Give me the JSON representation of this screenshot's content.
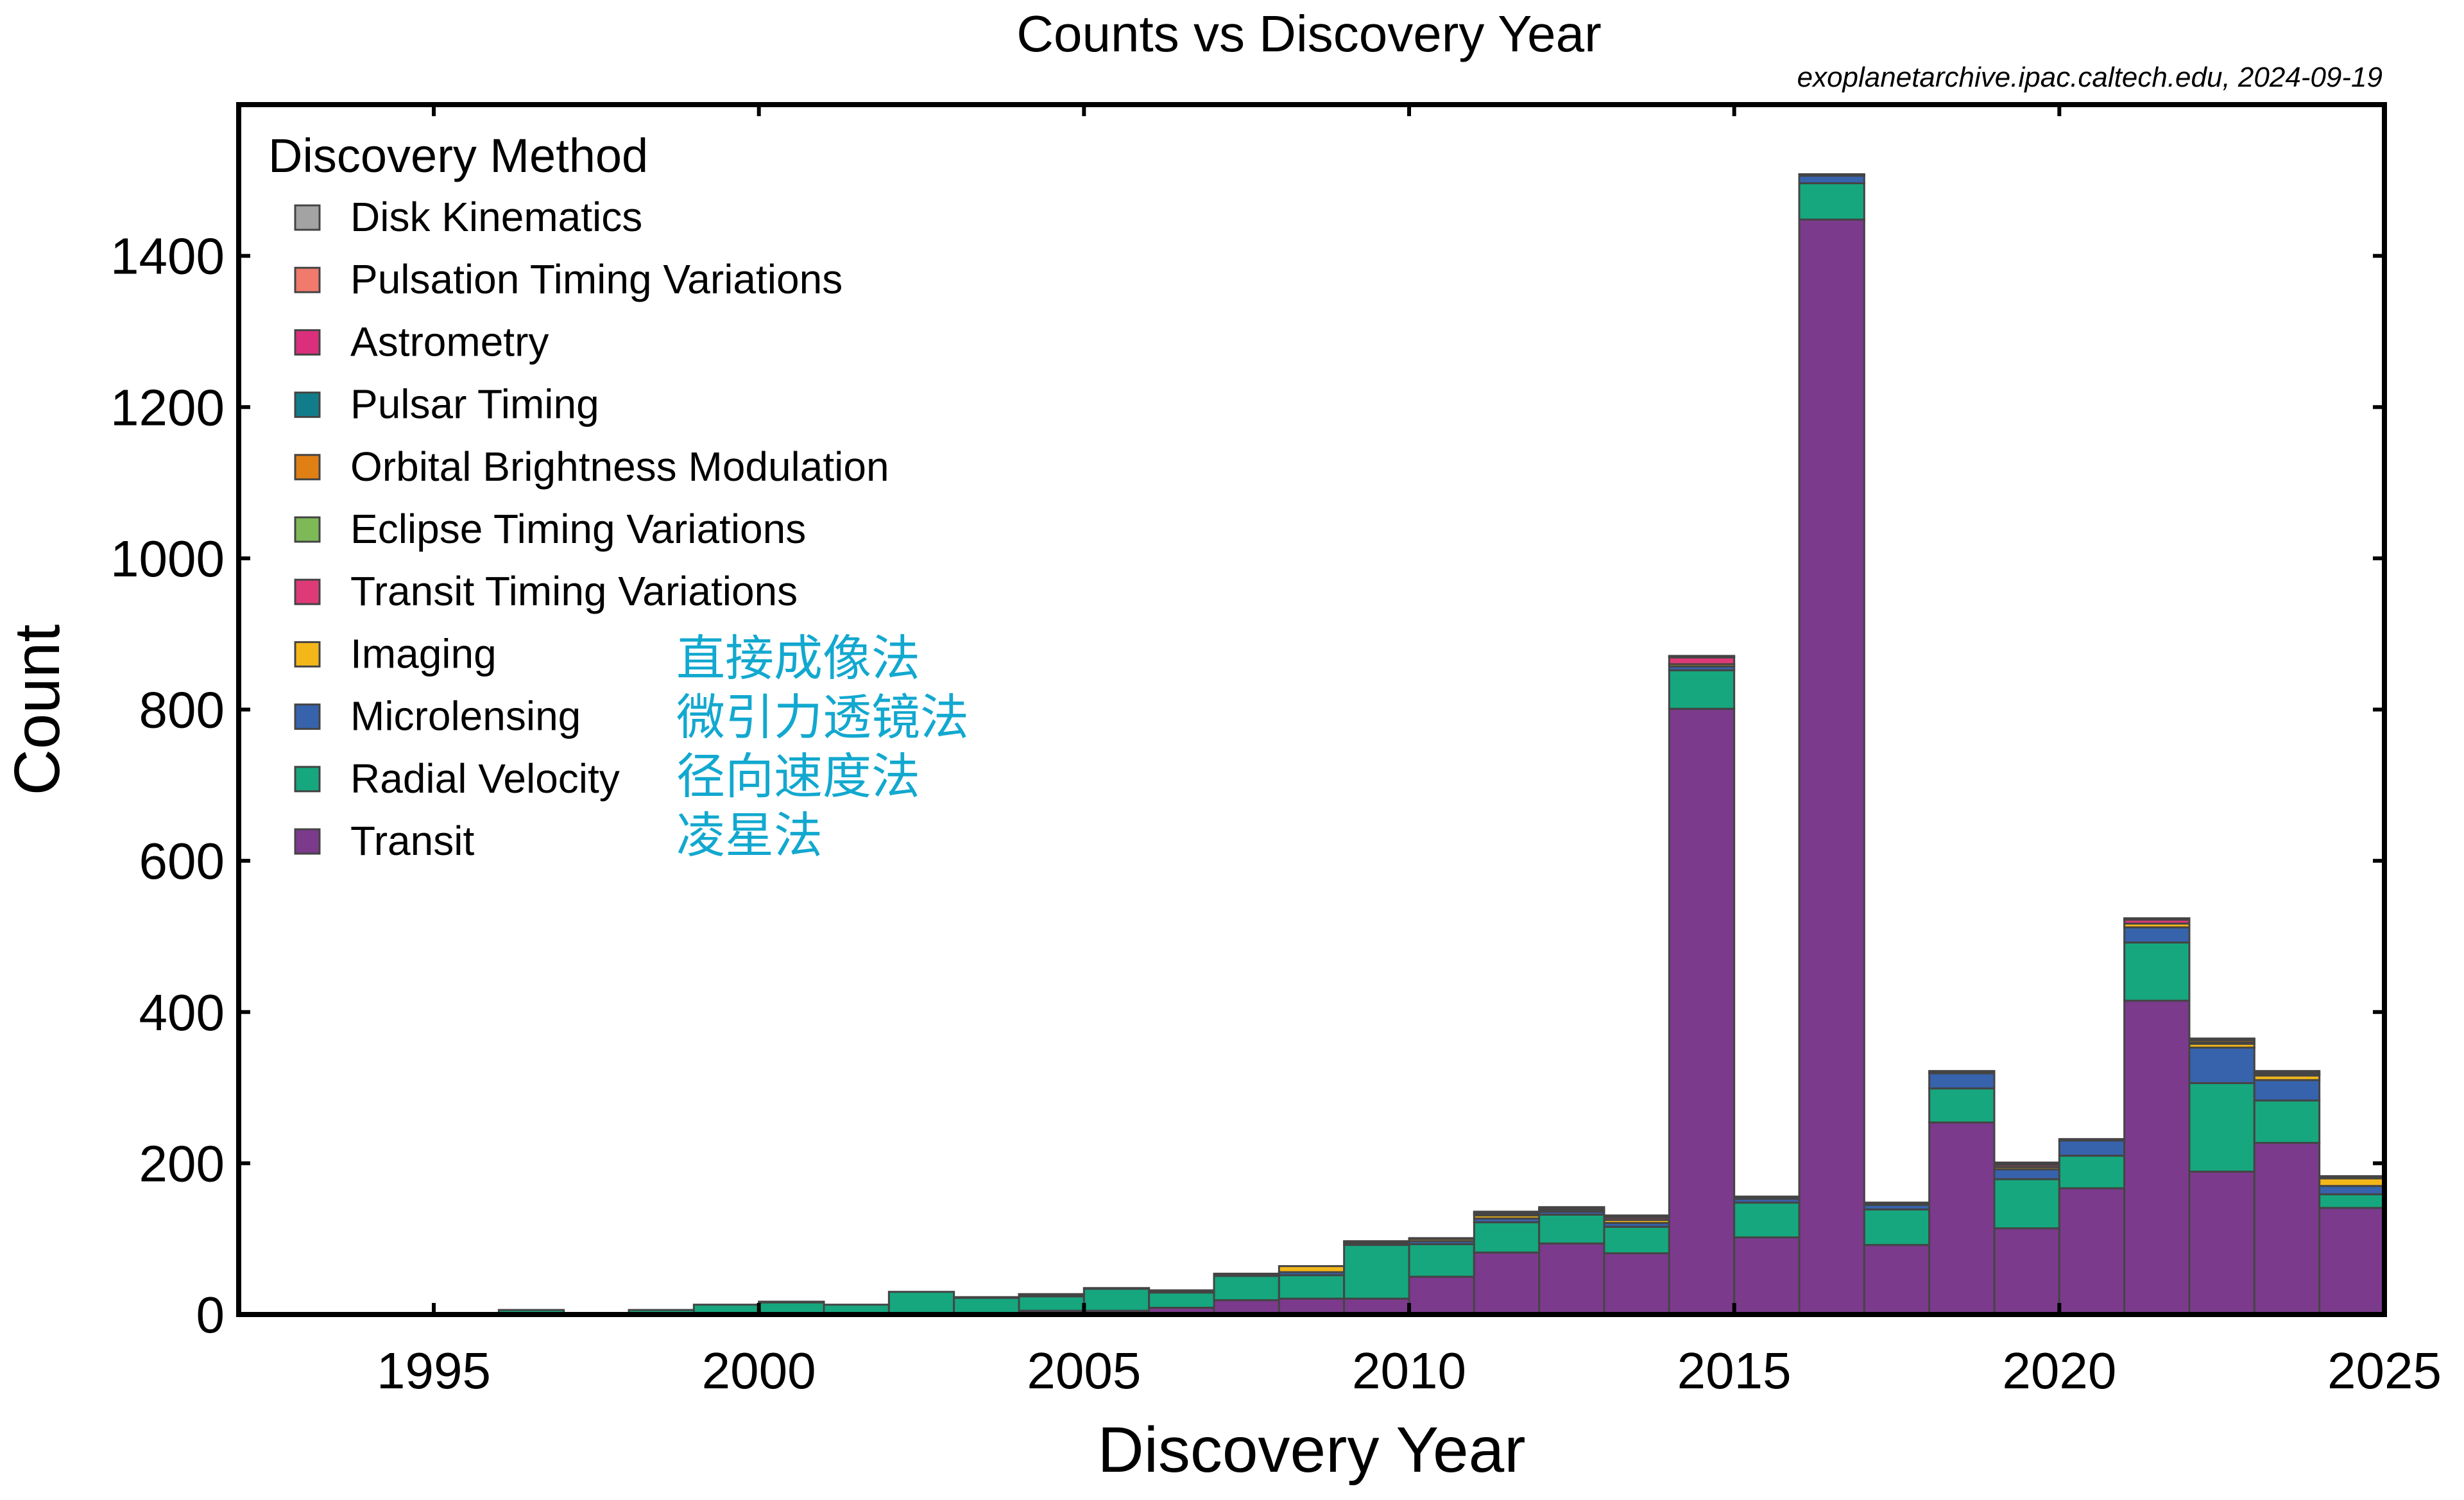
{
  "chart_data": {
    "type": "bar",
    "stacked": true,
    "title": "Counts vs Discovery Year",
    "source_note": "exoplanetarchive.ipac.caltech.edu, 2024-09-19",
    "xlabel": "Discovery Year",
    "ylabel": "Count",
    "xlim": [
      1992,
      2025
    ],
    "ylim": [
      0,
      1600
    ],
    "xticks": [
      1995,
      2000,
      2005,
      2010,
      2015,
      2020,
      2025
    ],
    "yticks": [
      0,
      200,
      400,
      600,
      800,
      1000,
      1200,
      1400
    ],
    "grid": false,
    "legend_title": "Discovery Method",
    "legend_position": "top-left",
    "x": [
      1992,
      1993,
      1994,
      1995,
      1996,
      1997,
      1998,
      1999,
      2000,
      2001,
      2002,
      2003,
      2004,
      2005,
      2006,
      2007,
      2008,
      2009,
      2010,
      2011,
      2012,
      2013,
      2014,
      2015,
      2016,
      2017,
      2018,
      2019,
      2020,
      2021,
      2022,
      2023,
      2024
    ],
    "series": [
      {
        "name": "Transit",
        "color": "#7b3a8c",
        "values": [
          0,
          0,
          0,
          0,
          0,
          0,
          0,
          0,
          0,
          0,
          1,
          1,
          5,
          5,
          9,
          19,
          21,
          21,
          50,
          82,
          94,
          81,
          801,
          102,
          1448,
          92,
          254,
          114,
          167,
          415,
          189,
          227,
          141
        ]
      },
      {
        "name": "Radial Velocity",
        "color": "#16a77f",
        "values": [
          0,
          0,
          0,
          1,
          6,
          1,
          6,
          13,
          16,
          13,
          29,
          21,
          19,
          29,
          20,
          32,
          31,
          71,
          43,
          40,
          38,
          35,
          51,
          46,
          48,
          47,
          45,
          65,
          43,
          77,
          117,
          56,
          18
        ]
      },
      {
        "name": "Microlensing",
        "color": "#3763ad",
        "values": [
          0,
          0,
          0,
          0,
          0,
          0,
          0,
          0,
          0,
          0,
          0,
          0,
          2,
          1,
          1,
          2,
          4,
          2,
          4,
          5,
          4,
          5,
          5,
          5,
          10,
          6,
          20,
          13,
          20,
          20,
          47,
          27,
          11
        ]
      },
      {
        "name": "Imaging",
        "color": "#f3b71a",
        "values": [
          0,
          0,
          0,
          0,
          0,
          0,
          0,
          0,
          0,
          0,
          0,
          0,
          1,
          0,
          2,
          1,
          8,
          2,
          3,
          4,
          2,
          4,
          3,
          2,
          1,
          2,
          1,
          3,
          0,
          5,
          5,
          6,
          10
        ]
      },
      {
        "name": "Transit Timing Variations",
        "color": "#df3a78",
        "values": [
          0,
          0,
          0,
          0,
          0,
          0,
          0,
          0,
          0,
          0,
          0,
          0,
          0,
          0,
          0,
          0,
          0,
          0,
          0,
          2,
          1,
          3,
          9,
          1,
          0,
          1,
          1,
          3,
          2,
          5,
          2,
          2,
          2
        ]
      },
      {
        "name": "Eclipse Timing Variations",
        "color": "#7dba57",
        "values": [
          0,
          0,
          0,
          0,
          0,
          0,
          0,
          0,
          0,
          0,
          0,
          0,
          0,
          0,
          0,
          0,
          0,
          1,
          1,
          1,
          1,
          1,
          0,
          0,
          1,
          0,
          1,
          2,
          0,
          1,
          0,
          1,
          0
        ]
      },
      {
        "name": "Orbital Brightness Modulation",
        "color": "#e08014",
        "values": [
          0,
          0,
          0,
          0,
          0,
          0,
          0,
          0,
          0,
          0,
          0,
          0,
          0,
          0,
          0,
          0,
          0,
          0,
          0,
          1,
          2,
          1,
          0,
          0,
          0,
          0,
          0,
          0,
          0,
          1,
          3,
          2,
          0
        ]
      },
      {
        "name": "Pulsar Timing",
        "color": "#127d8a",
        "values": [
          2,
          1,
          0,
          0,
          0,
          0,
          0,
          0,
          1,
          0,
          0,
          1,
          0,
          0,
          0,
          0,
          0,
          0,
          0,
          1,
          0,
          0,
          1,
          0,
          0,
          0,
          0,
          0,
          0,
          0,
          0,
          0,
          0
        ]
      },
      {
        "name": "Astrometry",
        "color": "#db2f7d",
        "values": [
          0,
          0,
          0,
          0,
          0,
          0,
          0,
          0,
          0,
          0,
          0,
          0,
          0,
          0,
          0,
          0,
          0,
          0,
          0,
          0,
          0,
          1,
          0,
          0,
          0,
          0,
          0,
          0,
          0,
          0,
          1,
          1,
          1
        ]
      },
      {
        "name": "Pulsation Timing Variations",
        "color": "#f07a6c",
        "values": [
          0,
          0,
          0,
          0,
          0,
          0,
          0,
          0,
          0,
          0,
          0,
          0,
          0,
          0,
          0,
          0,
          0,
          0,
          0,
          0,
          0,
          0,
          1,
          0,
          0,
          0,
          0,
          0,
          0,
          0,
          1,
          0,
          0
        ]
      },
      {
        "name": "Disk Kinematics",
        "color": "#a3a3a3",
        "values": [
          0,
          0,
          0,
          0,
          0,
          0,
          0,
          0,
          0,
          0,
          0,
          0,
          0,
          0,
          0,
          0,
          0,
          0,
          0,
          0,
          0,
          0,
          0,
          0,
          0,
          0,
          0,
          1,
          0,
          0,
          0,
          0,
          0
        ]
      }
    ],
    "legend_order": [
      "Disk Kinematics",
      "Pulsation Timing Variations",
      "Astrometry",
      "Pulsar Timing",
      "Orbital Brightness Modulation",
      "Eclipse Timing Variations",
      "Transit Timing Variations",
      "Imaging",
      "Microlensing",
      "Radial Velocity",
      "Transit"
    ],
    "annotations": [
      "直接成像法",
      "微引力透镜法",
      "径向速度法",
      "凌星法"
    ]
  }
}
